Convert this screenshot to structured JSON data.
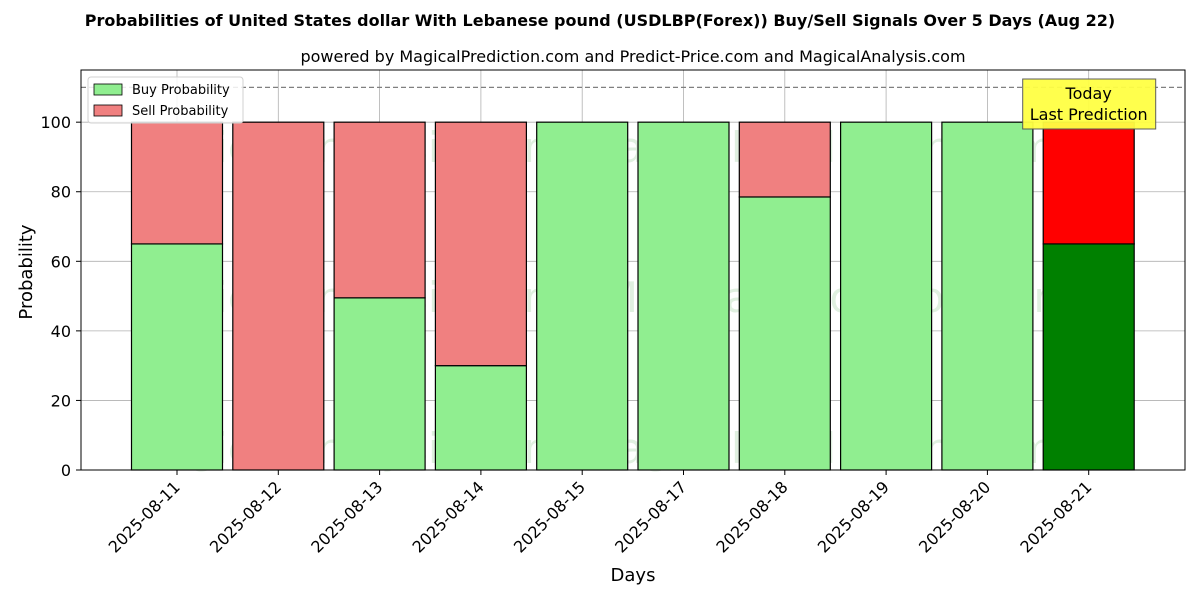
{
  "chart_data": {
    "type": "bar",
    "title": "Probabilities of United States dollar With Lebanese pound (USDLBP(Forex)) Buy/Sell Signals Over 5 Days (Aug 22)",
    "subtitle": "powered by MagicalPrediction.com and Predict-Price.com and MagicalAnalysis.com",
    "xlabel": "Days",
    "ylabel": "Probability",
    "ylim": [
      0,
      115
    ],
    "yticks": [
      0,
      20,
      40,
      60,
      80,
      100
    ],
    "grid": true,
    "legend_position": "top-left",
    "reference_line": 110,
    "categories": [
      "2025-08-11",
      "2025-08-12",
      "2025-08-13",
      "2025-08-14",
      "2025-08-15",
      "2025-08-17",
      "2025-08-18",
      "2025-08-19",
      "2025-08-20",
      "2025-08-21"
    ],
    "series": [
      {
        "name": "Buy Probability",
        "values": [
          65,
          0,
          49.5,
          30,
          100,
          100,
          78.5,
          100,
          100,
          65
        ],
        "color": "#90ee90",
        "highlight_color": "#008000"
      },
      {
        "name": "Sell Probability",
        "values": [
          35,
          100,
          50.5,
          70,
          0,
          0,
          21.5,
          0,
          0,
          35
        ],
        "color": "#f08080",
        "highlight_color": "#ff0000"
      }
    ],
    "highlight_index": 9,
    "annotation": {
      "lines": [
        "Today",
        "Last Prediction"
      ],
      "color": "#ffff44"
    },
    "watermarks": [
      "MagicalAnalysis.com",
      "MagicalPrediction.com",
      "MagicalAnalysis.com",
      "MagicalPrediction.com",
      "MagicalAnalysis.com",
      "MagicalPrediction.com"
    ]
  }
}
